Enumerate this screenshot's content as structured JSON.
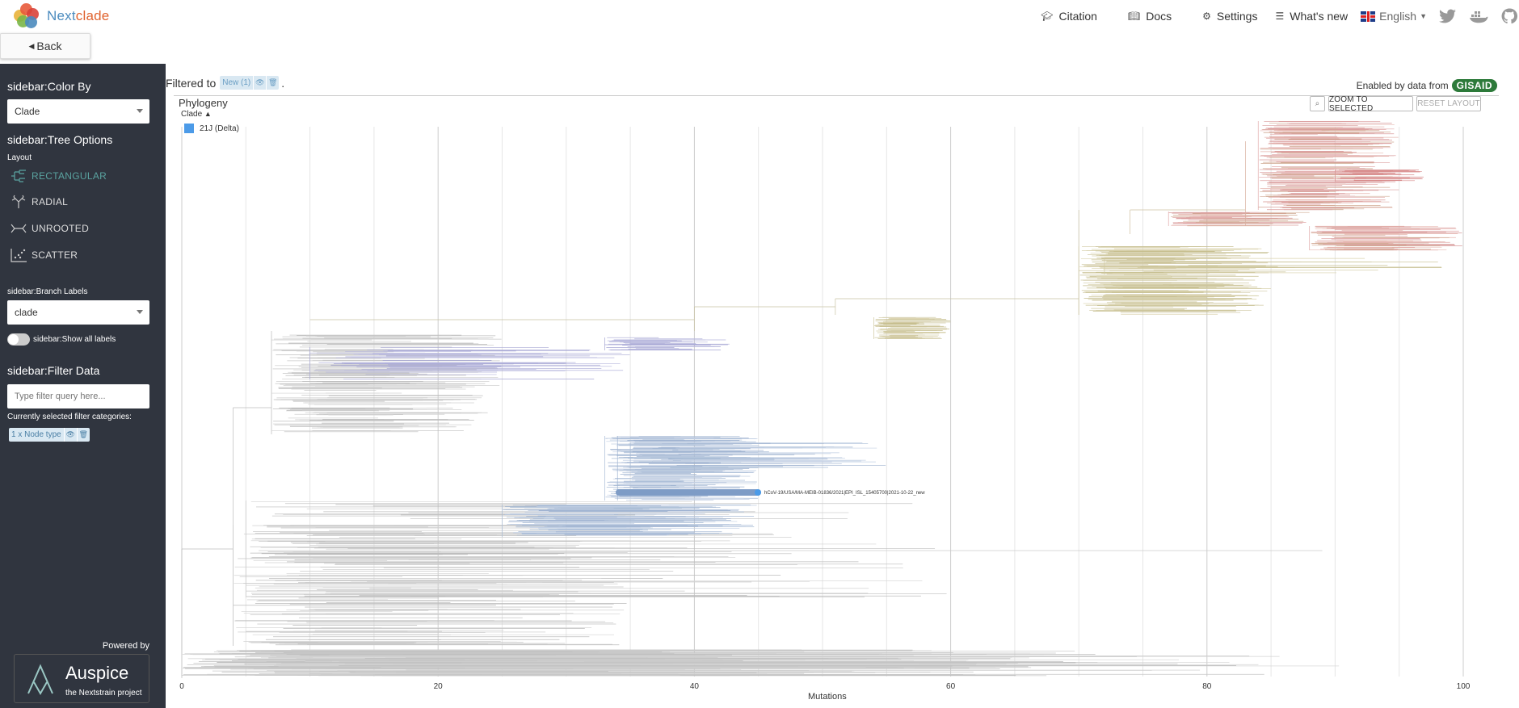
{
  "app": {
    "name_part1": "Next",
    "name_part2": "clade"
  },
  "nav": {
    "citation": "Citation",
    "docs": "Docs",
    "settings": "Settings",
    "whats_new": "What's new",
    "language": "English"
  },
  "back_label": "Back",
  "sidebar": {
    "color_by_heading": "sidebar:Color By",
    "color_by_value": "Clade",
    "tree_options_heading": "sidebar:Tree Options",
    "layout_label": "Layout",
    "layouts": [
      "RECTANGULAR",
      "RADIAL",
      "UNROOTED",
      "SCATTER"
    ],
    "active_layout": "RECTANGULAR",
    "branch_labels_heading": "sidebar:Branch Labels",
    "branch_labels_value": "clade",
    "show_all_labels": "sidebar:Show all labels",
    "filter_heading": "sidebar:Filter Data",
    "filter_placeholder": "Type filter query here...",
    "selected_categories_label": "Currently selected filter categories:",
    "selected_chip": "1 x Node type",
    "powered_by": "Powered by",
    "auspice_name": "Auspice",
    "auspice_sub": "the Nextstrain project"
  },
  "main": {
    "filtered_to": "Filtered to",
    "filter_chip": "New (1)",
    "enabled_by": "Enabled by data from",
    "gisaid": "GISAID",
    "panel_title": "Phylogeny",
    "legend_title": "Clade",
    "legend_items": [
      {
        "label": "21J (Delta)",
        "color": "#4c9be8"
      }
    ],
    "zoom_to_selected": "ZOOM TO SELECTED",
    "reset_layout": "RESET LAYOUT",
    "axis_label": "Mutations",
    "axis_ticks": [
      "0",
      "20",
      "40",
      "60",
      "80",
      "100"
    ],
    "highlighted_tip": "hCoV-19/USA/MA-MEIB-01836/2021|EPI_ISL_15405700|2021-10-22_new"
  }
}
